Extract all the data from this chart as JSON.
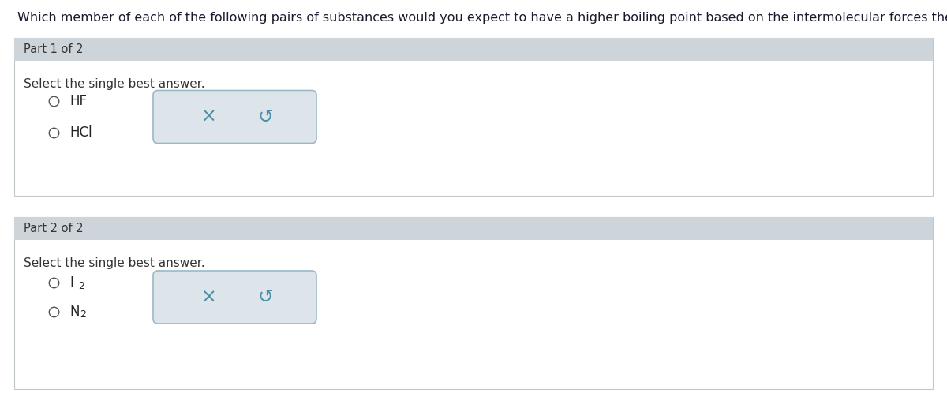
{
  "title": "Which member of each of the following pairs of substances would you expect to have a higher boiling point based on the intermolecular forces they exhibit?",
  "title_fontsize": 11.5,
  "title_color": "#1a1a2e",
  "bg_color": "#ffffff",
  "header_bg": "#cdd5db",
  "part1_header": "Part 1 of 2",
  "part2_header": "Part 2 of 2",
  "header_fontsize": 10.5,
  "select_text": "Select the single best answer.",
  "select_fontsize": 11,
  "part1_options": [
    "HF",
    "HCl"
  ],
  "part2_options_sub": [
    [
      "I",
      "2"
    ],
    [
      "N",
      "2"
    ]
  ],
  "option_fontsize": 12,
  "box_fill": "#dde5ea",
  "box_edge_color": "#9ab8c8",
  "x_color": "#4a8fa8",
  "undo_color": "#4a8fa8",
  "radio_color": "#555555",
  "section_border_color": "#c0c8cc",
  "section_bg": "#ffffff",
  "outer_bg": "#f0f0f0"
}
